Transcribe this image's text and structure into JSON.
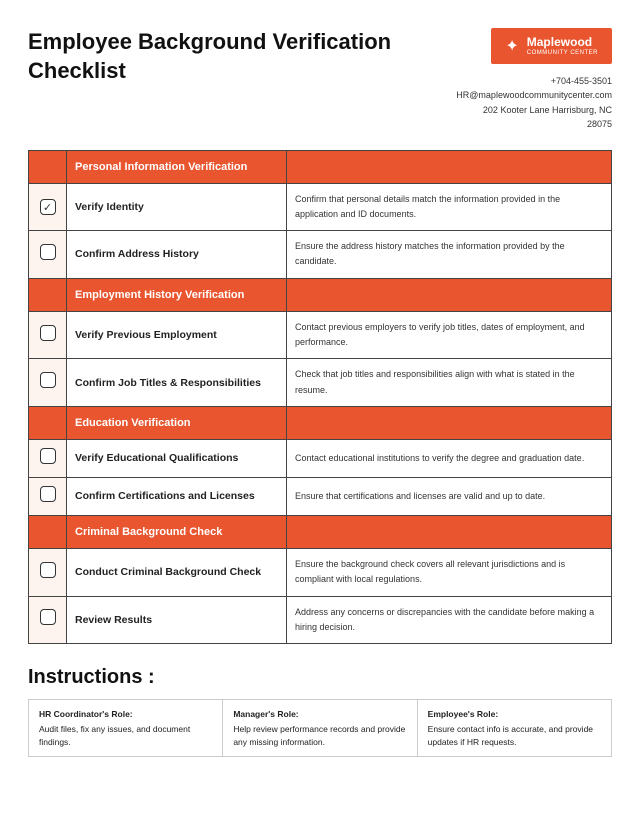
{
  "title": "Employee Background Verification Checklist",
  "logo": {
    "name": "Maplewood",
    "sub": "COMMUNITY CENTER",
    "icon": "✦"
  },
  "contact": {
    "phone": "+704-455-3501",
    "email": "HR@maplewoodcommunitycenter.com",
    "address": "202 Kooter Lane Harrisburg, NC 28075"
  },
  "colors": {
    "accent": "#e8552f",
    "chkbg": "#fdf4f0",
    "border": "#444"
  },
  "sections": [
    {
      "header": "Personal Information Verification",
      "items": [
        {
          "checked": true,
          "title": "Verify Identity",
          "desc": "Confirm that personal details match the information provided in the application and ID documents."
        },
        {
          "checked": false,
          "title": "Confirm Address History",
          "desc": "Ensure the address history matches the information provided by the candidate."
        }
      ]
    },
    {
      "header": "Employment History Verification",
      "items": [
        {
          "checked": false,
          "title": "Verify Previous Employment",
          "desc": "Contact previous employers to verify job titles, dates of employment, and performance."
        },
        {
          "checked": false,
          "title": "Confirm Job Titles & Responsibilities",
          "desc": "Check that job titles and responsibilities align with what is stated in the resume."
        }
      ]
    },
    {
      "header": "Education Verification",
      "items": [
        {
          "checked": false,
          "title": "Verify Educational Qualifications",
          "desc": "Contact educational institutions to verify the degree and graduation date."
        },
        {
          "checked": false,
          "title": "Confirm Certifications and Licenses",
          "desc": "Ensure that certifications and licenses are valid and up to date."
        }
      ]
    },
    {
      "header": "Criminal Background Check",
      "items": [
        {
          "checked": false,
          "title": "Conduct Criminal Background Check",
          "desc": "Ensure the background check covers all relevant jurisdictions and is compliant with local regulations."
        },
        {
          "checked": false,
          "title": "Review Results",
          "desc": "Address any concerns or discrepancies with the candidate before making a hiring decision."
        }
      ]
    }
  ],
  "instructions": {
    "title": "Instructions :",
    "roles": [
      {
        "h": "HR Coordinator's Role:",
        "t": "Audit files, fix any issues, and document findings."
      },
      {
        "h": "Manager's Role:",
        "t": "Help review performance records and provide any missing information."
      },
      {
        "h": "Employee's Role:",
        "t": "Ensure contact info is accurate, and provide updates if HR requests."
      }
    ]
  }
}
